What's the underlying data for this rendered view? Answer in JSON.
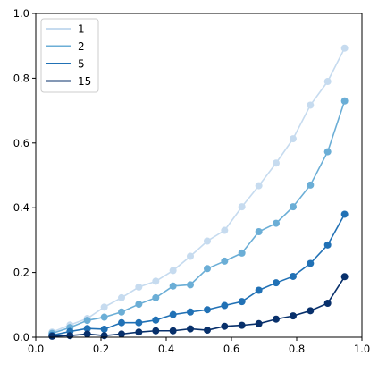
{
  "chart_data": {
    "type": "line",
    "x": [
      0.05,
      0.105,
      0.158,
      0.21,
      0.263,
      0.316,
      0.368,
      0.421,
      0.474,
      0.526,
      0.579,
      0.632,
      0.684,
      0.737,
      0.789,
      0.842,
      0.895,
      0.947
    ],
    "series": [
      {
        "name": "1",
        "color": "#c6dbef",
        "values": [
          0.016,
          0.038,
          0.058,
          0.093,
          0.122,
          0.155,
          0.173,
          0.206,
          0.25,
          0.297,
          0.33,
          0.403,
          0.468,
          0.538,
          0.613,
          0.717,
          0.79,
          0.893
        ]
      },
      {
        "name": "2",
        "color": "#6baed6",
        "values": [
          0.012,
          0.03,
          0.052,
          0.062,
          0.078,
          0.102,
          0.122,
          0.158,
          0.162,
          0.212,
          0.235,
          0.26,
          0.326,
          0.352,
          0.403,
          0.47,
          0.573,
          0.73
        ]
      },
      {
        "name": "5",
        "color": "#2171b5",
        "values": [
          0.006,
          0.018,
          0.027,
          0.025,
          0.045,
          0.045,
          0.053,
          0.07,
          0.078,
          0.085,
          0.098,
          0.11,
          0.145,
          0.168,
          0.188,
          0.228,
          0.285,
          0.38
        ]
      },
      {
        "name": "15",
        "color": "#08306b",
        "values": [
          0.003,
          0.005,
          0.01,
          0.005,
          0.01,
          0.016,
          0.02,
          0.02,
          0.026,
          0.022,
          0.034,
          0.037,
          0.042,
          0.056,
          0.066,
          0.082,
          0.105,
          0.187
        ]
      }
    ],
    "xlim": [
      0,
      1
    ],
    "ylim": [
      0,
      1
    ],
    "xticks": [
      "0.0",
      "0.2",
      "0.4",
      "0.6",
      "0.8",
      "1.0"
    ],
    "yticks": [
      "0.0",
      "0.2",
      "0.4",
      "0.6",
      "0.8",
      "1.0"
    ],
    "grid": false,
    "legend_position": "top-left"
  }
}
